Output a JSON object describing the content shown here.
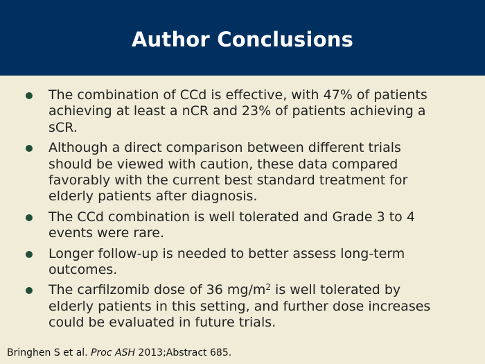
{
  "header": {
    "title": "Author Conclusions"
  },
  "bullets": [
    {
      "text": "The combination of CCd is effective, with 47% of patients achieving at least a nCR and 23% of patients achieving a sCR."
    },
    {
      "text": "Although a direct comparison between different trials should be viewed with caution, these data compared favorably with the current best standard treatment for elderly patients after diagnosis."
    },
    {
      "text": "The CCd combination is well tolerated and Grade 3 to 4 events were rare."
    },
    {
      "text": "Longer follow-up is needed to better assess long-term outcomes."
    },
    {
      "text_before": "The carfilzomib dose of 36 mg/m",
      "superscript": "2",
      "text_after": " is well tolerated by elderly patients in this setting, and further dose increases could be evaluated in future trials."
    }
  ],
  "footer": {
    "authors": "Bringhen S et al. ",
    "journal": "Proc ASH",
    "details": " 2013;Abstract 685."
  },
  "colors": {
    "header_bg": "#00305f",
    "slide_bg": "#f1ecd8",
    "bullet_dot": "#1f4f3a"
  }
}
